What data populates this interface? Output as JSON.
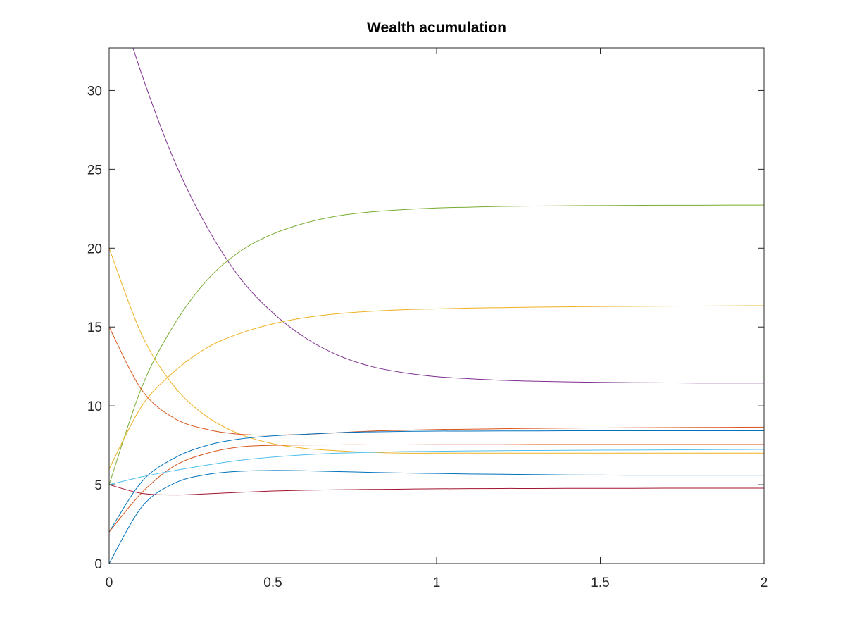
{
  "chart_data": {
    "type": "line",
    "title": "Wealth acumulation",
    "xlabel": "",
    "ylabel": "",
    "xlim": [
      0,
      2
    ],
    "ylim": [
      0,
      32.7
    ],
    "xticks": [
      0,
      0.5,
      1,
      1.5,
      2
    ],
    "xtick_labels": [
      "0",
      "0.5",
      "1",
      "1.5",
      "2"
    ],
    "yticks": [
      0,
      5,
      10,
      15,
      20,
      25,
      30
    ],
    "ytick_labels": [
      "0",
      "5",
      "10",
      "15",
      "20",
      "25",
      "30"
    ],
    "grid": false,
    "legend": "none",
    "x": [
      0,
      0.1,
      0.2,
      0.3,
      0.4,
      0.5,
      0.6,
      0.7,
      0.8,
      0.9,
      1.0,
      1.1,
      1.2,
      1.3,
      1.4,
      1.5,
      1.6,
      1.7,
      1.8,
      1.9,
      2.0
    ],
    "series": [
      {
        "color": "#7E2F8E",
        "values": [
          37.5,
          31.0,
          25.5,
          21.3,
          18.1,
          15.9,
          14.3,
          13.2,
          12.5,
          12.1,
          11.85,
          11.72,
          11.62,
          11.56,
          11.52,
          11.49,
          11.47,
          11.46,
          11.45,
          11.45,
          11.45
        ]
      },
      {
        "color": "#77AC30",
        "values": [
          5.0,
          11.2,
          15.2,
          18.0,
          19.8,
          20.9,
          21.6,
          22.05,
          22.3,
          22.45,
          22.55,
          22.6,
          22.65,
          22.67,
          22.69,
          22.7,
          22.71,
          22.72,
          22.72,
          22.73,
          22.73
        ]
      },
      {
        "color": "#EDB120",
        "values": [
          6.0,
          10.0,
          12.2,
          13.7,
          14.6,
          15.2,
          15.6,
          15.85,
          16.0,
          16.1,
          16.15,
          16.2,
          16.23,
          16.26,
          16.28,
          16.3,
          16.31,
          16.32,
          16.33,
          16.34,
          16.35
        ]
      },
      {
        "color": "#EDB120",
        "values": [
          20.0,
          14.5,
          11.2,
          9.3,
          8.2,
          7.6,
          7.3,
          7.15,
          7.05,
          7.0,
          7.0,
          7.0,
          7.0,
          7.0,
          7.0,
          7.0,
          7.0,
          7.0,
          7.0,
          7.0,
          7.0
        ]
      },
      {
        "color": "#D95319",
        "values": [
          15.0,
          11.0,
          9.2,
          8.5,
          8.2,
          8.15,
          8.2,
          8.3,
          8.4,
          8.45,
          8.5,
          8.52,
          8.55,
          8.57,
          8.59,
          8.6,
          8.61,
          8.62,
          8.63,
          8.64,
          8.65
        ]
      },
      {
        "color": "#0072BD",
        "values": [
          2.0,
          5.2,
          6.7,
          7.5,
          7.9,
          8.1,
          8.2,
          8.3,
          8.35,
          8.38,
          8.4,
          8.4,
          8.41,
          8.41,
          8.42,
          8.42,
          8.42,
          8.42,
          8.42,
          8.42,
          8.42
        ]
      },
      {
        "color": "#D95319",
        "values": [
          2.0,
          4.5,
          6.2,
          7.0,
          7.4,
          7.5,
          7.52,
          7.53,
          7.53,
          7.53,
          7.54,
          7.54,
          7.54,
          7.55,
          7.55,
          7.55,
          7.55,
          7.55,
          7.55,
          7.55,
          7.55
        ]
      },
      {
        "color": "#4DBEEE",
        "values": [
          5.0,
          5.5,
          5.9,
          6.25,
          6.55,
          6.75,
          6.9,
          7.0,
          7.05,
          7.1,
          7.12,
          7.14,
          7.16,
          7.17,
          7.18,
          7.19,
          7.2,
          7.21,
          7.22,
          7.23,
          7.24
        ]
      },
      {
        "color": "#0072BD",
        "values": [
          0.0,
          3.6,
          5.1,
          5.65,
          5.85,
          5.9,
          5.88,
          5.83,
          5.78,
          5.74,
          5.71,
          5.68,
          5.66,
          5.64,
          5.62,
          5.61,
          5.6,
          5.6,
          5.6,
          5.6,
          5.6
        ]
      },
      {
        "color": "#A2142F",
        "values": [
          5.0,
          4.45,
          4.35,
          4.42,
          4.52,
          4.6,
          4.65,
          4.68,
          4.7,
          4.72,
          4.74,
          4.75,
          4.76,
          4.76,
          4.77,
          4.77,
          4.77,
          4.78,
          4.78,
          4.78,
          4.78
        ]
      }
    ]
  }
}
